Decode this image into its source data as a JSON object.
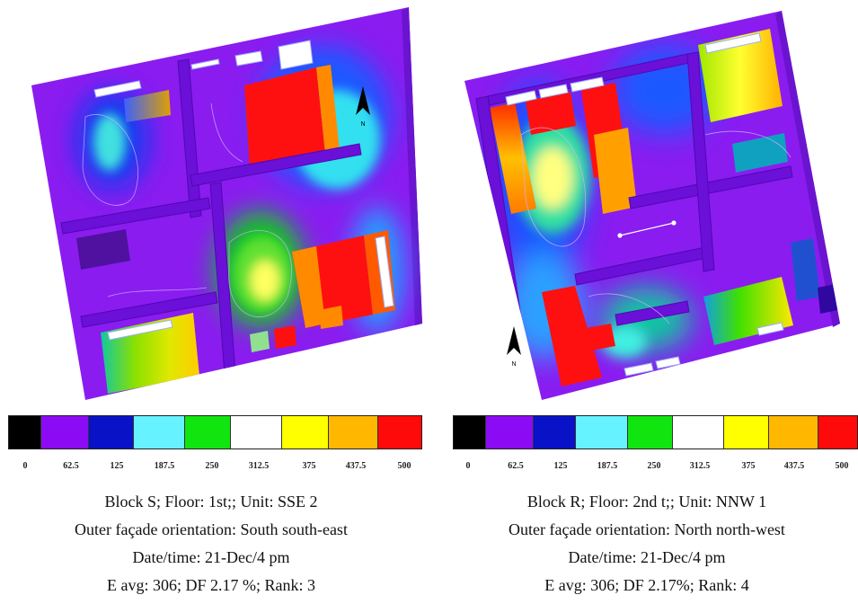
{
  "scale": {
    "colors": [
      "#000000",
      "#8B0BF5",
      "#0A12C8",
      "#66F2FF",
      "#10E510",
      "#FFFFFF",
      "#FFFF00",
      "#FFB700",
      "#FF0A0A"
    ],
    "ticks": [
      "0",
      "62.5",
      "125",
      "187.5",
      "250",
      "312.5",
      "375",
      "437.5",
      "500"
    ]
  },
  "panels": [
    {
      "north_label": "N",
      "caption": {
        "line1": "Block S; Floor: 1st;; Unit: SSE 2",
        "line2": "Outer façade orientation: South south-east",
        "line3": "Date/time: 21-Dec/4 pm",
        "line4": "E avg: 306; DF 2.17 %; Rank: 3"
      }
    },
    {
      "north_label": "N",
      "caption": {
        "line1": "Block R; Floor: 2nd t;; Unit: NNW 1",
        "line2": "Outer façade orientation: North north-west",
        "line3": "Date/time: 21-Dec/4 pm",
        "line4": "E avg: 306; DF 2.17%; Rank: 4"
      }
    }
  ]
}
